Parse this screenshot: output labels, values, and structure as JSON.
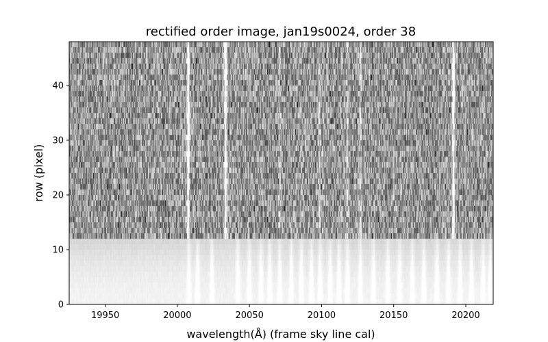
{
  "chart_data": {
    "type": "heatmap",
    "title": "rectified order image, jan19s0024, order 38",
    "xlabel": "wavelength(Å) (frame sky line cal)",
    "ylabel": "row (pixel)",
    "xlim": [
      19925,
      20219
    ],
    "ylim": [
      0,
      48
    ],
    "x_ticks": [
      19950,
      20000,
      20050,
      20100,
      20150,
      20200
    ],
    "y_ticks": [
      0,
      10,
      20,
      30,
      40
    ],
    "colormap": "gray",
    "grid": false,
    "background_rows_below": 12,
    "sky_lines_bright": [
      20007.5,
      20033.5,
      20191.5
    ],
    "sky_lines_medium": [
      20071,
      20099,
      20118,
      20127
    ],
    "sky_lines_faint": [
      20008,
      20014,
      20024,
      20042,
      20050,
      20058,
      20064,
      20071,
      20079,
      20086,
      20093,
      20099,
      20106,
      20112,
      20118,
      20127,
      20136,
      20146,
      20154,
      20163,
      20171,
      20180,
      20188,
      20196,
      20204,
      20212,
      20217
    ]
  }
}
